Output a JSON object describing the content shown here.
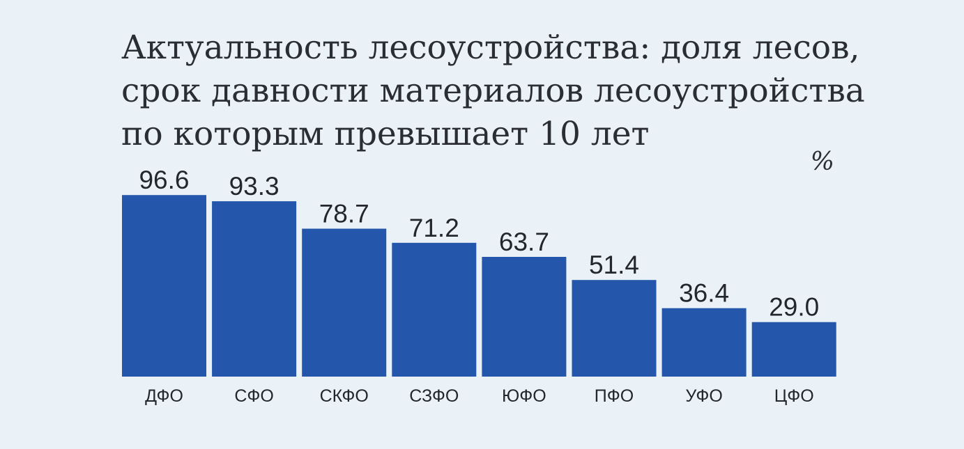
{
  "title_lines": [
    "Актуальность лесоустройства: доля лесов,",
    "срок давности материалов лесоустройства",
    "по которым превышает 10 лет"
  ],
  "unit": "%",
  "colors": {
    "background": "#eaf2f7",
    "bar": "#2457ab",
    "text": "#23272c"
  },
  "chart_data": {
    "type": "bar",
    "title": "Актуальность лесоустройства: доля лесов, срок давности материалов лесоустройства по которым превышает 10 лет",
    "categories": [
      "ДФО",
      "СФО",
      "СКФО",
      "СЗФО",
      "ЮФО",
      "ПФО",
      "УФО",
      "ЦФО"
    ],
    "values": [
      96.6,
      93.3,
      78.7,
      71.2,
      63.7,
      51.4,
      36.4,
      29.0
    ],
    "value_labels": [
      "96.6",
      "93.3",
      "78.7",
      "71.2",
      "63.7",
      "51.4",
      "36.4",
      "29.0"
    ],
    "ylabel": "%",
    "ylim": [
      0,
      100
    ],
    "grid": false,
    "legend": "none"
  }
}
